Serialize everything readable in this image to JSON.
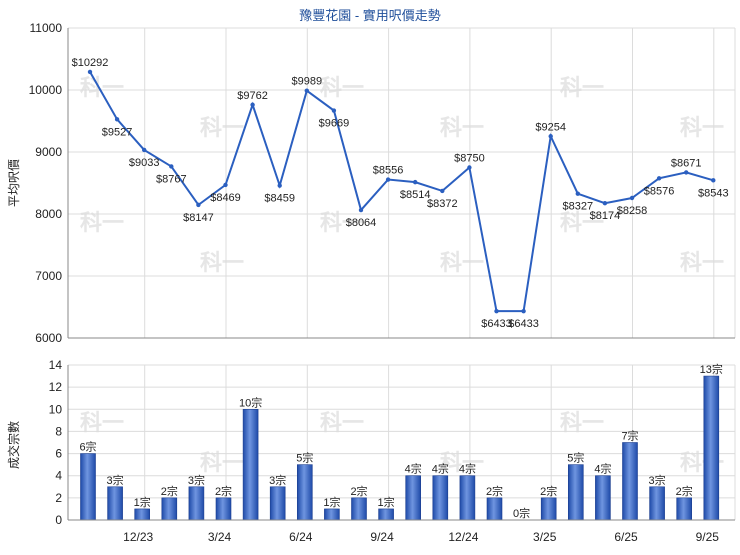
{
  "chart_data": [
    {
      "type": "line",
      "title": "豫豐花園 - 實用呎價走勢",
      "ylabel": "平均呎價",
      "ylim": [
        6000,
        11000
      ],
      "yticks": [
        6000,
        7000,
        8000,
        9000,
        10000,
        11000
      ],
      "grid": true,
      "series": [
        {
          "values": [
            10292,
            9527,
            9033,
            8767,
            8147,
            8469,
            9762,
            8459,
            9989,
            9669,
            8064,
            8556,
            8514,
            8372,
            8750,
            6433,
            6433,
            9254,
            8327,
            8174,
            8258,
            8576,
            8671,
            8543
          ],
          "labels": [
            "$10292",
            "$9527",
            "$9033",
            "$8767",
            "$8147",
            "$8469",
            "$9762",
            "$8459",
            "$9989",
            "$9669",
            "$8064",
            "$8556",
            "$8514",
            "$8372",
            "$8750",
            "$6433",
            "$6433",
            "$9254",
            "$8327",
            "$8174",
            "$8258",
            "$8576",
            "$8671",
            "$8543"
          ],
          "color": "#2b5fc0"
        }
      ]
    },
    {
      "type": "bar",
      "ylabel": "成交宗數",
      "ylim": [
        0,
        14
      ],
      "yticks": [
        0,
        2,
        4,
        6,
        8,
        10,
        12,
        14
      ],
      "xticks": [
        "12/23",
        "3/24",
        "6/24",
        "9/24",
        "12/24",
        "3/25",
        "6/25",
        "9/25"
      ],
      "values": [
        6,
        3,
        1,
        2,
        3,
        2,
        10,
        3,
        5,
        1,
        2,
        1,
        4,
        4,
        4,
        2,
        0,
        2,
        5,
        4,
        7,
        3,
        2,
        13
      ],
      "labels": [
        "6宗",
        "3宗",
        "1宗",
        "2宗",
        "3宗",
        "2宗",
        "10宗",
        "3宗",
        "5宗",
        "1宗",
        "2宗",
        "1宗",
        "4宗",
        "4宗",
        "4宗",
        "2宗",
        "0宗",
        "2宗",
        "5宗",
        "4宗",
        "7宗",
        "3宗",
        "2宗",
        "13宗"
      ],
      "color": "#2f5fbf"
    }
  ],
  "watermark": "科一"
}
